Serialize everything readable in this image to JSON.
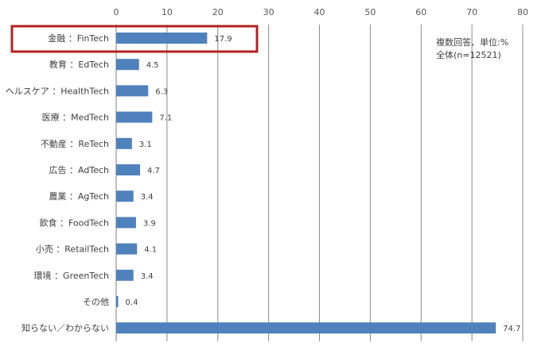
{
  "chart_data": {
    "type": "bar",
    "orientation": "horizontal",
    "categories": [
      "金融 ：FinTech",
      "教育 ：EdTech",
      "ヘルスケア ：HealthTech",
      "医療 ：MedTech",
      "不動産 ：ReTech",
      "広告 ：AdTech",
      "農業 ：AgTech",
      "飲食 ：FoodTech",
      "小売 ：RetailTech",
      "環境 ：GreenTech",
      "その他",
      "知らない／わからない"
    ],
    "values": [
      17.9,
      4.5,
      6.3,
      7.1,
      3.1,
      4.7,
      3.4,
      3.9,
      4.1,
      3.4,
      0.4,
      74.7
    ],
    "data_labels": [
      "17.9",
      "4.5",
      "6.3",
      "7.1",
      "3.1",
      "4.7",
      "3.4",
      "3.9",
      "4.1",
      "3.4",
      "0.4",
      "74.7"
    ],
    "xlim": [
      0,
      80
    ],
    "xticks": [
      "0",
      "10",
      "20",
      "30",
      "40",
      "50",
      "60",
      "70",
      "80"
    ],
    "x_axis_position": "top",
    "grid": "vertical",
    "legend": "none",
    "highlighted_category": "金融 ：FinTech",
    "annotations": [
      "複数回答、単位:%",
      "全体(n=12521)"
    ],
    "colors": {
      "bar": "#4f81bd",
      "grid": "#8c8c8c",
      "highlight_box": "#b22222"
    }
  }
}
